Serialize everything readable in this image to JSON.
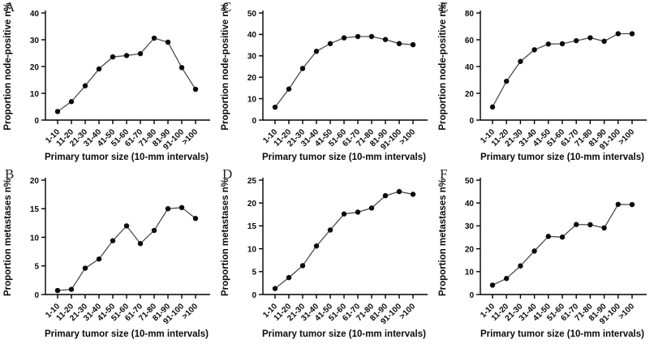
{
  "figure": {
    "background": "#ffffff",
    "panel_letters": [
      "A",
      "C",
      "E",
      "B",
      "D",
      "F"
    ]
  },
  "style": {
    "axis_color": "#000000",
    "line_color": "#404040",
    "marker_color": "#0a0a0a",
    "text_color": "#0a0a0a"
  },
  "chart_data": [
    {
      "panel": "A",
      "type": "line",
      "xlabel": "Primary tumor size (10-mm intervals)",
      "ylabel": "Proportion node-positive n%",
      "ylim": [
        0,
        40
      ],
      "ytick_step": 10,
      "grid": false,
      "legend": null,
      "categories": [
        "1-10",
        "11-20",
        "21-30",
        "31-40",
        "41-50",
        "51-60",
        "61-70",
        "71-80",
        "81-90",
        "91-100",
        ">100"
      ],
      "values": [
        3.2,
        6.9,
        12.8,
        19.1,
        23.6,
        24.1,
        24.8,
        30.6,
        29.1,
        19.6,
        11.5
      ]
    },
    {
      "panel": "C",
      "type": "line",
      "xlabel": "Primary tumor size (10-mm intervals)",
      "ylabel": "Proportion node-positive n%",
      "ylim": [
        0,
        50
      ],
      "ytick_step": 10,
      "grid": false,
      "legend": null,
      "categories": [
        "1-10",
        "11-20",
        "21-30",
        "31-40",
        "41-50",
        "51-60",
        "61-70",
        "71-80",
        "81-90",
        "91-100",
        ">100"
      ],
      "values": [
        6.0,
        14.5,
        24.1,
        32.1,
        35.7,
        38.4,
        39.0,
        39.0,
        37.6,
        35.7,
        35.2
      ]
    },
    {
      "panel": "E",
      "type": "line",
      "xlabel": "Primary tumor size (10-mm intervals)",
      "ylabel": "Proportion node-positive n%",
      "ylim": [
        0,
        80
      ],
      "ytick_step": 20,
      "grid": false,
      "legend": null,
      "categories": [
        "1-10",
        "11-20",
        "21-30",
        "31-40",
        "41-50",
        "51-60",
        "61-70",
        "71-80",
        "81-90",
        "91-100",
        ">100"
      ],
      "values": [
        9.8,
        29.0,
        43.8,
        52.5,
        56.8,
        57.0,
        59.3,
        61.5,
        58.9,
        64.5,
        64.5
      ]
    },
    {
      "panel": "B",
      "type": "line",
      "xlabel": "Primary tumor size (10-mm intervals)",
      "ylabel": "Proportion metastases n%",
      "ylim": [
        0,
        20
      ],
      "ytick_step": 5,
      "grid": false,
      "legend": null,
      "categories": [
        "1-10",
        "11-20",
        "21-30",
        "31-40",
        "41-50",
        "51-60",
        "61-70",
        "71-80",
        "81-90",
        "91-100",
        ">100"
      ],
      "values": [
        0.7,
        0.9,
        4.6,
        6.2,
        9.4,
        12.0,
        8.9,
        11.2,
        15.0,
        15.2,
        13.3
      ]
    },
    {
      "panel": "D",
      "type": "line",
      "xlabel": "Primary tumor size (10-mm intervals)",
      "ylabel": "Proportion metastases n%",
      "ylim": [
        0,
        25
      ],
      "ytick_step": 5,
      "grid": false,
      "legend": null,
      "categories": [
        "1-10",
        "11-20",
        "21-30",
        "31-40",
        "41-50",
        "51-60",
        "61-70",
        "71-80",
        "81-90",
        "91-100",
        ">100"
      ],
      "values": [
        1.3,
        3.7,
        6.3,
        10.6,
        14.1,
        17.6,
        18.0,
        18.9,
        21.6,
        22.5,
        21.9
      ]
    },
    {
      "panel": "F",
      "type": "line",
      "xlabel": "Primary tumor size (10-mm intervals)",
      "ylabel": "Proportion metastases n%",
      "ylim": [
        0,
        50
      ],
      "ytick_step": 10,
      "grid": false,
      "legend": null,
      "categories": [
        "1-10",
        "11-20",
        "21-30",
        "31-40",
        "41-50",
        "51-60",
        "61-70",
        "71-80",
        "81-90",
        "91-100",
        ">100"
      ],
      "values": [
        4.1,
        7.0,
        12.5,
        19.0,
        25.4,
        25.1,
        30.6,
        30.5,
        29.1,
        39.4,
        39.3
      ]
    }
  ]
}
